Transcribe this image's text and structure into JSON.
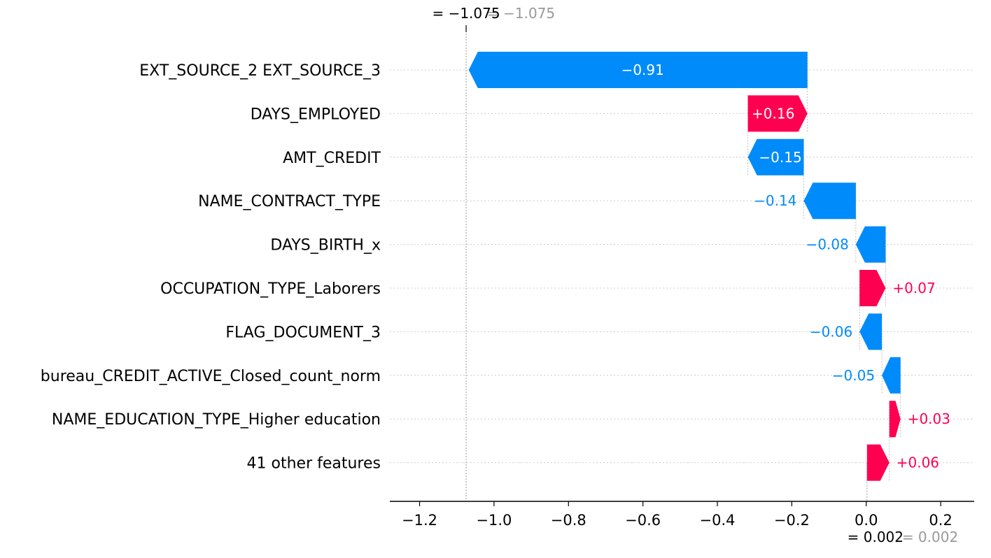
{
  "chart_data": {
    "type": "waterfall",
    "xlim": [
      -1.28,
      0.29
    ],
    "xticks": [
      -1.2,
      -1.0,
      -0.8,
      -0.6,
      -0.4,
      -0.2,
      0.0,
      0.2
    ],
    "xtick_labels": [
      "−1.2",
      "−1.0",
      "−0.8",
      "−0.6",
      "−0.4",
      "−0.2",
      "0.0",
      "0.2"
    ],
    "base_value": 0.002,
    "base_label": "= 0.002",
    "base_label_faded": "= 0.002",
    "output_value": -1.075,
    "output_label": "= −1.075",
    "output_label_faded": "= −1.075",
    "features": [
      {
        "name": "EXT_SOURCE_2 EXT_SOURCE_3",
        "value": -0.91,
        "label": "−0.91"
      },
      {
        "name": "DAYS_EMPLOYED",
        "value": 0.16,
        "label": "+0.16"
      },
      {
        "name": "AMT_CREDIT",
        "value": -0.15,
        "label": "−0.15"
      },
      {
        "name": "NAME_CONTRACT_TYPE",
        "value": -0.14,
        "label": "−0.14"
      },
      {
        "name": "DAYS_BIRTH_x",
        "value": -0.08,
        "label": "−0.08"
      },
      {
        "name": "OCCUPATION_TYPE_Laborers",
        "value": 0.07,
        "label": "+0.07"
      },
      {
        "name": "FLAG_DOCUMENT_3",
        "value": -0.06,
        "label": "−0.06"
      },
      {
        "name": "bureau_CREDIT_ACTIVE_Closed_count_norm",
        "value": -0.05,
        "label": "−0.05"
      },
      {
        "name": "NAME_EDUCATION_TYPE_Higher education",
        "value": 0.03,
        "label": "+0.03"
      },
      {
        "name": "41 other features",
        "value": 0.06,
        "label": "+0.06"
      }
    ],
    "colors": {
      "positive": "#ff0051",
      "negative": "#008bfb",
      "axis": "#000000",
      "grid": "#cccccc",
      "faded_text": "#999999"
    }
  }
}
